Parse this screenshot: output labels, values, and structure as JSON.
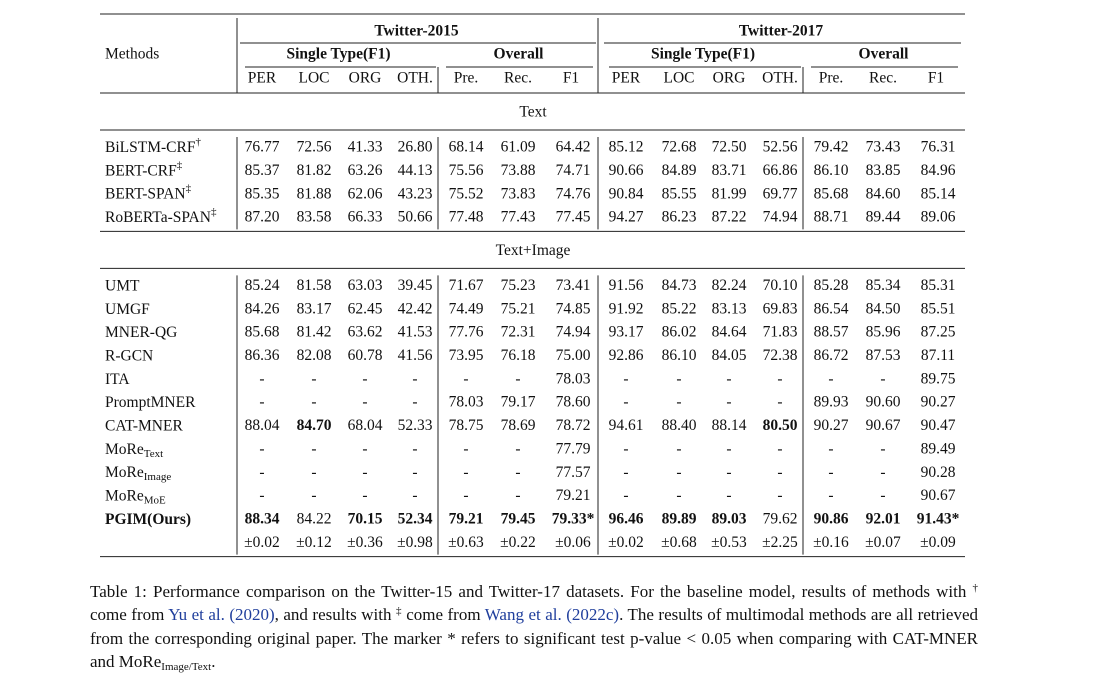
{
  "table": {
    "methods_header": "Methods",
    "groups": [
      {
        "name": "Twitter-2015",
        "subgroups": [
          "Single Type(F1)",
          "Overall"
        ],
        "columns": [
          "PER",
          "LOC",
          "ORG",
          "OTH.",
          "Pre.",
          "Rec.",
          "F1"
        ]
      },
      {
        "name": "Twitter-2017",
        "subgroups": [
          "Single Type(F1)",
          "Overall"
        ],
        "columns": [
          "PER",
          "LOC",
          "ORG",
          "OTH.",
          "Pre.",
          "Rec.",
          "F1"
        ]
      }
    ],
    "sections": [
      {
        "title": "Text",
        "rows": [
          {
            "method": "BiLSTM-CRF",
            "mark": "†",
            "cells": [
              "76.77",
              "72.56",
              "41.33",
              "26.80",
              "68.14",
              "61.09",
              "64.42",
              "85.12",
              "72.68",
              "72.50",
              "52.56",
              "79.42",
              "73.43",
              "76.31"
            ]
          },
          {
            "method": "BERT-CRF",
            "mark": "‡",
            "cells": [
              "85.37",
              "81.82",
              "63.26",
              "44.13",
              "75.56",
              "73.88",
              "74.71",
              "90.66",
              "84.89",
              "83.71",
              "66.86",
              "86.10",
              "83.85",
              "84.96"
            ]
          },
          {
            "method": "BERT-SPAN",
            "mark": "‡",
            "cells": [
              "85.35",
              "81.88",
              "62.06",
              "43.23",
              "75.52",
              "73.83",
              "74.76",
              "90.84",
              "85.55",
              "81.99",
              "69.77",
              "85.68",
              "84.60",
              "85.14"
            ]
          },
          {
            "method": "RoBERTa-SPAN",
            "mark": "‡",
            "cells": [
              "87.20",
              "83.58",
              "66.33",
              "50.66",
              "77.48",
              "77.43",
              "77.45",
              "94.27",
              "86.23",
              "87.22",
              "74.94",
              "88.71",
              "89.44",
              "89.06"
            ]
          }
        ]
      },
      {
        "title": "Text+Image",
        "rows": [
          {
            "method": "UMT",
            "cells": [
              "85.24",
              "81.58",
              "63.03",
              "39.45",
              "71.67",
              "75.23",
              "73.41",
              "91.56",
              "84.73",
              "82.24",
              "70.10",
              "85.28",
              "85.34",
              "85.31"
            ]
          },
          {
            "method": "UMGF",
            "cells": [
              "84.26",
              "83.17",
              "62.45",
              "42.42",
              "74.49",
              "75.21",
              "74.85",
              "91.92",
              "85.22",
              "83.13",
              "69.83",
              "86.54",
              "84.50",
              "85.51"
            ]
          },
          {
            "method": "MNER-QG",
            "cells": [
              "85.68",
              "81.42",
              "63.62",
              "41.53",
              "77.76",
              "72.31",
              "74.94",
              "93.17",
              "86.02",
              "84.64",
              "71.83",
              "88.57",
              "85.96",
              "87.25"
            ]
          },
          {
            "method": "R-GCN",
            "cells": [
              "86.36",
              "82.08",
              "60.78",
              "41.56",
              "73.95",
              "76.18",
              "75.00",
              "92.86",
              "86.10",
              "84.05",
              "72.38",
              "86.72",
              "87.53",
              "87.11"
            ]
          },
          {
            "method": "ITA",
            "cells": [
              "-",
              "-",
              "-",
              "-",
              "-",
              "-",
              "78.03",
              "-",
              "-",
              "-",
              "-",
              "-",
              "-",
              "89.75"
            ]
          },
          {
            "method": "PromptMNER",
            "cells": [
              "-",
              "-",
              "-",
              "-",
              "78.03",
              "79.17",
              "78.60",
              "-",
              "-",
              "-",
              "-",
              "89.93",
              "90.60",
              "90.27"
            ]
          },
          {
            "method": "CAT-MNER",
            "bold": [
              1,
              10
            ],
            "cells": [
              "88.04",
              "84.70",
              "68.04",
              "52.33",
              "78.75",
              "78.69",
              "78.72",
              "94.61",
              "88.40",
              "88.14",
              "80.50",
              "90.27",
              "90.67",
              "90.47"
            ]
          },
          {
            "method": "MoRe",
            "sub": "Text",
            "cells": [
              "-",
              "-",
              "-",
              "-",
              "-",
              "-",
              "77.79",
              "-",
              "-",
              "-",
              "-",
              "-",
              "-",
              "89.49"
            ]
          },
          {
            "method": "MoRe",
            "sub": "Image",
            "cells": [
              "-",
              "-",
              "-",
              "-",
              "-",
              "-",
              "77.57",
              "-",
              "-",
              "-",
              "-",
              "-",
              "-",
              "90.28"
            ]
          },
          {
            "method": "MoRe",
            "sub": "MoE",
            "cells": [
              "-",
              "-",
              "-",
              "-",
              "-",
              "-",
              "79.21",
              "-",
              "-",
              "-",
              "-",
              "-",
              "-",
              "90.67"
            ]
          },
          {
            "method": "PGIM(Ours)",
            "bold": [
              0,
              2,
              3,
              4,
              5,
              6,
              7,
              8,
              9,
              11,
              12,
              13
            ],
            "cells": [
              "88.34",
              "84.22",
              "70.15",
              "52.34",
              "79.21",
              "79.45",
              "79.33*",
              "96.46",
              "89.89",
              "89.03",
              "79.62",
              "90.86",
              "92.01",
              "91.43*"
            ]
          },
          {
            "color": "#e0201a",
            "cells": [
              "±0.02",
              "±0.12",
              "±0.36",
              "±0.98",
              "±0.63",
              "±0.22",
              "±0.06",
              "±0.02",
              "±0.68",
              "±0.53",
              "±2.25",
              "±0.16",
              "±0.07",
              "±0.09"
            ]
          }
        ]
      }
    ]
  },
  "caption": [
    {
      "text": "Table 1: Performance comparison on the Twitter-15 and Twitter-17 datasets. For the baseline model, results of methods with "
    },
    {
      "text": "†",
      "style": "sup"
    },
    {
      "text": " come from "
    },
    {
      "text": "Yu et al. (2020)",
      "style": "link"
    },
    {
      "text": ", and results with "
    },
    {
      "text": "‡",
      "style": "sup"
    },
    {
      "text": " come from "
    },
    {
      "text": "Wang et al. (2022c)",
      "style": "link"
    },
    {
      "text": ". The results of multimodal methods are all retrieved from the corresponding original paper. The marker * refers to significant test p-value < 0.05 when comparing with CAT-MNER and MoRe"
    },
    {
      "text": "Image/Text",
      "style": "sub"
    },
    {
      "text": "."
    }
  ]
}
